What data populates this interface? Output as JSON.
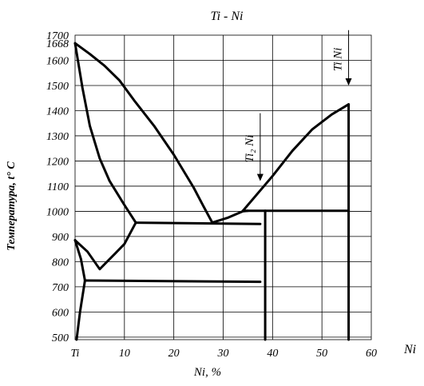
{
  "chart_data": {
    "type": "line",
    "title": "Ti - Ni",
    "xlabel": "Ni, %",
    "ylabel": "Температура, t° C",
    "xlim": [
      0,
      60
    ],
    "ylim": [
      490,
      1700
    ],
    "x_ticks": [
      {
        "value": 0,
        "label": "Ti"
      },
      {
        "value": 10,
        "label": "10"
      },
      {
        "value": 20,
        "label": "20"
      },
      {
        "value": 30,
        "label": "30"
      },
      {
        "value": 40,
        "label": "40"
      },
      {
        "value": 50,
        "label": "50"
      },
      {
        "value": 60,
        "label": "60"
      }
    ],
    "x_axis_end_label": "Ni",
    "y_ticks": [
      {
        "value": 500,
        "label": "500"
      },
      {
        "value": 600,
        "label": "600"
      },
      {
        "value": 700,
        "label": "700"
      },
      {
        "value": 800,
        "label": "800"
      },
      {
        "value": 900,
        "label": "900"
      },
      {
        "value": 1000,
        "label": "1000"
      },
      {
        "value": 1100,
        "label": "1100"
      },
      {
        "value": 1200,
        "label": "1200"
      },
      {
        "value": 1300,
        "label": "1300"
      },
      {
        "value": 1400,
        "label": "1400"
      },
      {
        "value": 1500,
        "label": "1500"
      },
      {
        "value": 1600,
        "label": "1600"
      },
      {
        "value": 1668,
        "label": "1668"
      },
      {
        "value": 1700,
        "label": "1700"
      }
    ],
    "grid": true,
    "series": [
      {
        "points": [
          [
            0,
            1668
          ],
          [
            3,
            1625
          ],
          [
            6,
            1578
          ],
          [
            9,
            1520
          ],
          [
            12,
            1440
          ],
          [
            16,
            1340
          ],
          [
            20,
            1225
          ],
          [
            24,
            1095
          ],
          [
            26,
            1020
          ],
          [
            27.8,
            955
          ]
        ]
      },
      {
        "points": [
          [
            0,
            1668
          ],
          [
            1.5,
            1490
          ],
          [
            3,
            1340
          ],
          [
            5,
            1210
          ],
          [
            7,
            1120
          ],
          [
            10,
            1025
          ],
          [
            12.3,
            955
          ]
        ]
      },
      {
        "points": [
          [
            27.8,
            955
          ],
          [
            31,
            975
          ],
          [
            34,
            1000
          ],
          [
            35,
            1002
          ]
        ]
      },
      {
        "points": [
          [
            34,
            1002
          ],
          [
            40,
            1140
          ],
          [
            44,
            1240
          ],
          [
            48,
            1325
          ],
          [
            52,
            1385
          ],
          [
            55.4,
            1425
          ]
        ]
      },
      {
        "points": [
          [
            12.3,
            955
          ],
          [
            37.5,
            950
          ]
        ]
      },
      {
        "points": [
          [
            0,
            885
          ],
          [
            2.5,
            840
          ],
          [
            5,
            770
          ],
          [
            8,
            830
          ],
          [
            10,
            870
          ],
          [
            12.3,
            955
          ]
        ]
      },
      {
        "points": [
          [
            0,
            885
          ],
          [
            1.2,
            810
          ],
          [
            2,
            725
          ]
        ]
      },
      {
        "points": [
          [
            0.3,
            490
          ],
          [
            1,
            600
          ],
          [
            2,
            725
          ]
        ]
      },
      {
        "points": [
          [
            2,
            725
          ],
          [
            37.5,
            720
          ]
        ]
      },
      {
        "points": [
          [
            34,
            1002
          ],
          [
            55.4,
            1002
          ]
        ]
      },
      {
        "points": [
          [
            38.5,
            1002
          ],
          [
            38.5,
            490
          ]
        ]
      },
      {
        "points": [
          [
            55.4,
            1425
          ],
          [
            55.4,
            490
          ]
        ]
      }
    ],
    "annotations": [
      {
        "label": "Ti₂ Ni",
        "x": 37.5,
        "y_top": 1390,
        "y_tip": 1120
      },
      {
        "label": "Ti Ni",
        "x": 55.4,
        "y_top": 1720,
        "y_tip": 1500
      }
    ]
  }
}
